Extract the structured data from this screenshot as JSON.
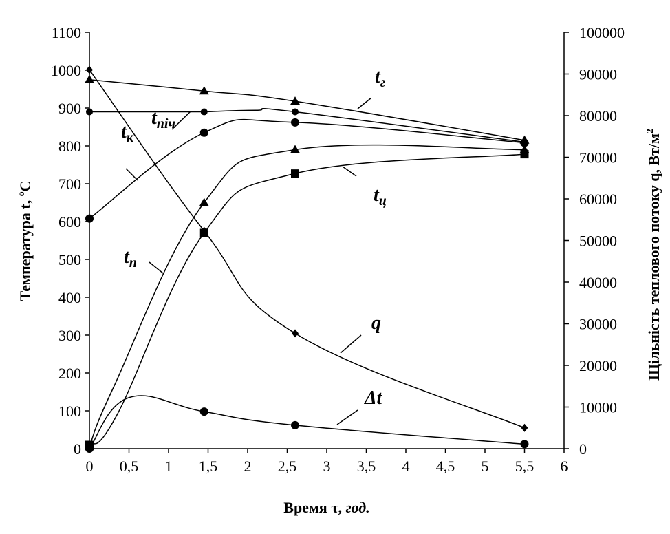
{
  "chart_data": {
    "type": "line",
    "xlabel": {
      "main": "Время τ, ",
      "unit": "год."
    },
    "ylabel_left": {
      "main": "Температура t, ",
      "sup": "o",
      "unit": "C"
    },
    "ylabel_right": {
      "main": "Щільність теплового потоку q, Вт/м",
      "sup": "2"
    },
    "xlim": [
      0,
      6
    ],
    "ylim_left": [
      0,
      1100
    ],
    "ylim_right": [
      0,
      100000
    ],
    "x_ticks": [
      "0",
      "0,5",
      "1",
      "1,5",
      "2",
      "2,5",
      "3",
      "3,5",
      "4",
      "4,5",
      "5",
      "5,5",
      "6"
    ],
    "y_left_ticks": [
      "0",
      "100",
      "200",
      "300",
      "400",
      "500",
      "600",
      "700",
      "800",
      "900",
      "1000",
      "1100"
    ],
    "y_right_ticks": [
      "0",
      "10000",
      "20000",
      "30000",
      "40000",
      "50000",
      "60000",
      "70000",
      "80000",
      "90000",
      "100000"
    ],
    "grid": false,
    "series": [
      {
        "name": "t",
        "sub": "г",
        "axis": "left",
        "marker": "triangle",
        "x": [
          0,
          1.45,
          2.6,
          5.5
        ],
        "y": [
          975,
          945,
          918,
          815
        ]
      },
      {
        "name": "t",
        "sub": "піч",
        "axis": "left",
        "marker": "small-circle",
        "x": [
          0,
          1.45,
          2.6,
          5.5
        ],
        "y": [
          890,
          890,
          890,
          810
        ]
      },
      {
        "name": "t",
        "sub": "к",
        "axis": "left",
        "marker": "circle",
        "x": [
          0,
          1.45,
          2.6,
          5.5
        ],
        "y": [
          608,
          835,
          862,
          808
        ]
      },
      {
        "name": "t",
        "sub": "п",
        "axis": "left",
        "marker": "triangle",
        "x": [
          0,
          1.45,
          2.6,
          5.5
        ],
        "y": [
          5,
          650,
          790,
          790
        ]
      },
      {
        "name": "t",
        "sub": "ц",
        "axis": "left",
        "marker": "square",
        "x": [
          0,
          1.45,
          2.6,
          5.5
        ],
        "y": [
          10,
          570,
          727,
          778
        ]
      },
      {
        "name": "q",
        "sub": "",
        "axis": "right",
        "marker": "diamond",
        "x": [
          0,
          1.45,
          2.6,
          5.5
        ],
        "y": [
          91000,
          52300,
          27700,
          5000
        ]
      },
      {
        "name": "Δt",
        "sub": "",
        "axis": "left",
        "marker": "circle",
        "x": [
          0,
          1.45,
          2.6,
          5.5
        ],
        "y": [
          0,
          98,
          62,
          12
        ]
      }
    ]
  }
}
